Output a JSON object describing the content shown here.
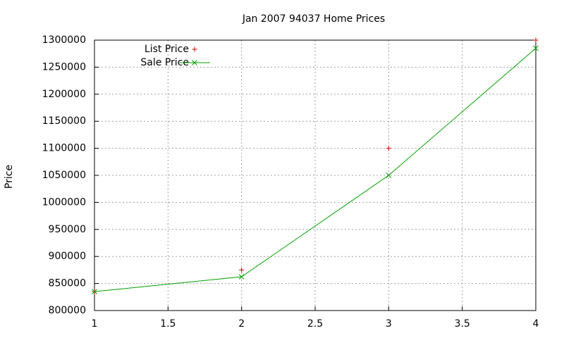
{
  "chart_data": {
    "type": "line",
    "title": "Jan 2007 94037 Home Prices",
    "y_label": "Price",
    "x": [
      1,
      2,
      3,
      4
    ],
    "series": [
      {
        "name": "List Price",
        "color": "#cc0000",
        "marker": "plus",
        "line": false,
        "values": [
          835000,
          875000,
          1100000,
          1300000
        ]
      },
      {
        "name": "Sale Price",
        "color": "#00a000",
        "marker": "cross",
        "line": true,
        "values": [
          835000,
          862500,
          1050000,
          1285000
        ]
      }
    ],
    "xlim": [
      1,
      4
    ],
    "xticks": [
      1,
      1.5,
      2,
      2.5,
      3,
      3.5,
      4
    ],
    "ylim": [
      800000,
      1300000
    ],
    "yticks": [
      800000,
      850000,
      900000,
      950000,
      1000000,
      1050000,
      1100000,
      1150000,
      1200000,
      1250000,
      1300000
    ],
    "grid": true,
    "legend": "top-left"
  }
}
